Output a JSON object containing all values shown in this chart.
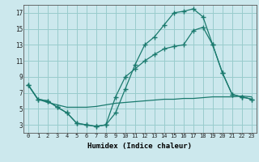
{
  "xlabel": "Humidex (Indice chaleur)",
  "background_color": "#cce8ed",
  "grid_color": "#99cccc",
  "line_color": "#1a7a6e",
  "xlim": [
    -0.5,
    23.5
  ],
  "ylim": [
    2.0,
    18.0
  ],
  "yticks": [
    3,
    5,
    7,
    9,
    11,
    13,
    15,
    17
  ],
  "xticks": [
    0,
    1,
    2,
    3,
    4,
    5,
    6,
    7,
    8,
    9,
    10,
    11,
    12,
    13,
    14,
    15,
    16,
    17,
    18,
    19,
    20,
    21,
    22,
    23
  ],
  "series1_x": [
    0,
    1,
    2,
    3,
    4,
    5,
    6,
    7,
    8,
    9,
    10,
    11,
    12,
    13,
    14,
    15,
    16,
    17,
    18,
    19,
    20,
    21,
    22,
    23
  ],
  "series1_y": [
    8.0,
    6.2,
    6.0,
    5.2,
    4.5,
    3.2,
    3.0,
    2.8,
    3.0,
    4.5,
    7.5,
    10.5,
    13.0,
    14.0,
    15.5,
    17.0,
    17.2,
    17.5,
    16.5,
    13.0,
    9.5,
    6.8,
    6.5,
    6.2
  ],
  "series2_x": [
    0,
    1,
    2,
    3,
    4,
    5,
    6,
    7,
    8,
    9,
    10,
    11,
    12,
    13,
    14,
    15,
    16,
    17,
    18,
    19,
    20,
    21,
    22,
    23
  ],
  "series2_y": [
    8.0,
    6.2,
    6.0,
    5.2,
    4.5,
    3.2,
    3.0,
    2.8,
    3.0,
    6.5,
    9.0,
    10.0,
    11.0,
    11.8,
    12.5,
    12.8,
    13.0,
    14.8,
    15.2,
    13.0,
    9.5,
    6.8,
    6.5,
    6.2
  ],
  "series3_x": [
    0,
    1,
    2,
    3,
    4,
    5,
    6,
    7,
    8,
    9,
    10,
    11,
    12,
    13,
    14,
    15,
    16,
    17,
    18,
    19,
    20,
    21,
    22,
    23
  ],
  "series3_y": [
    8.0,
    6.2,
    5.8,
    5.5,
    5.2,
    5.2,
    5.2,
    5.3,
    5.5,
    5.7,
    5.8,
    5.9,
    6.0,
    6.1,
    6.2,
    6.2,
    6.3,
    6.3,
    6.4,
    6.5,
    6.5,
    6.5,
    6.6,
    6.5
  ]
}
